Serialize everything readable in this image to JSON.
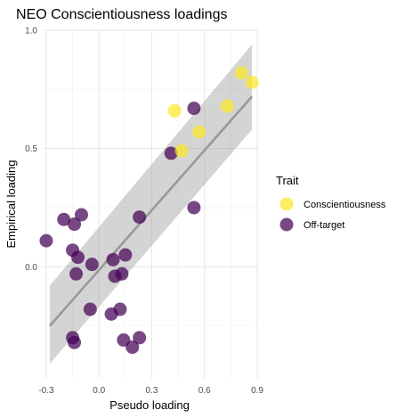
{
  "chart_data": {
    "type": "scatter",
    "title": "NEO Conscientiousness loadings",
    "xlabel": "Pseudo loading",
    "ylabel": "Empirical loading",
    "xlim": [
      -0.32,
      0.91
    ],
    "ylim": [
      -0.47,
      1.0
    ],
    "x_ticks": [
      -0.3,
      0.0,
      0.3,
      0.6,
      0.9
    ],
    "x_tick_labels": [
      "-0.3",
      "0.0",
      "0.3",
      "0.6",
      "0.9"
    ],
    "y_ticks": [
      0.0,
      0.5,
      1.0
    ],
    "y_tick_labels": [
      "0.0",
      "0.5",
      "1.0"
    ],
    "grid": true,
    "legend": {
      "title": "Trait",
      "position": "right",
      "entries": [
        {
          "label": "Conscientiousness",
          "color": "#FDE725"
        },
        {
          "label": "Off-target",
          "color": "#440154"
        }
      ]
    },
    "series": [
      {
        "name": "Conscientiousness",
        "color": "#FDE725",
        "points": [
          {
            "x": 0.81,
            "y": 0.82
          },
          {
            "x": 0.87,
            "y": 0.78
          },
          {
            "x": 0.73,
            "y": 0.68
          },
          {
            "x": 0.43,
            "y": 0.66
          },
          {
            "x": 0.57,
            "y": 0.57
          },
          {
            "x": 0.47,
            "y": 0.49
          }
        ]
      },
      {
        "name": "Off-target",
        "color": "#440154",
        "points": [
          {
            "x": 0.54,
            "y": 0.67
          },
          {
            "x": 0.41,
            "y": 0.48
          },
          {
            "x": -0.1,
            "y": 0.22
          },
          {
            "x": -0.2,
            "y": 0.2
          },
          {
            "x": -0.14,
            "y": 0.18
          },
          {
            "x": 0.23,
            "y": 0.21
          },
          {
            "x": 0.54,
            "y": 0.25
          },
          {
            "x": -0.3,
            "y": 0.11
          },
          {
            "x": -0.15,
            "y": 0.07
          },
          {
            "x": -0.12,
            "y": 0.04
          },
          {
            "x": -0.04,
            "y": 0.01
          },
          {
            "x": 0.08,
            "y": 0.03
          },
          {
            "x": 0.15,
            "y": 0.05
          },
          {
            "x": -0.13,
            "y": -0.03
          },
          {
            "x": 0.09,
            "y": -0.04
          },
          {
            "x": 0.13,
            "y": -0.03
          },
          {
            "x": -0.05,
            "y": -0.18
          },
          {
            "x": 0.07,
            "y": -0.2
          },
          {
            "x": 0.12,
            "y": -0.18
          },
          {
            "x": -0.15,
            "y": -0.3
          },
          {
            "x": -0.14,
            "y": -0.32
          },
          {
            "x": 0.14,
            "y": -0.31
          },
          {
            "x": 0.23,
            "y": -0.3
          },
          {
            "x": 0.19,
            "y": -0.34
          }
        ]
      }
    ],
    "fit": {
      "type": "linear",
      "x_range": [
        -0.28,
        0.87
      ],
      "line": [
        -0.25,
        0.72
      ],
      "ci_lower": [
        -0.41,
        0.58
      ],
      "ci_upper": [
        -0.08,
        0.94
      ],
      "color": "#999999"
    }
  }
}
